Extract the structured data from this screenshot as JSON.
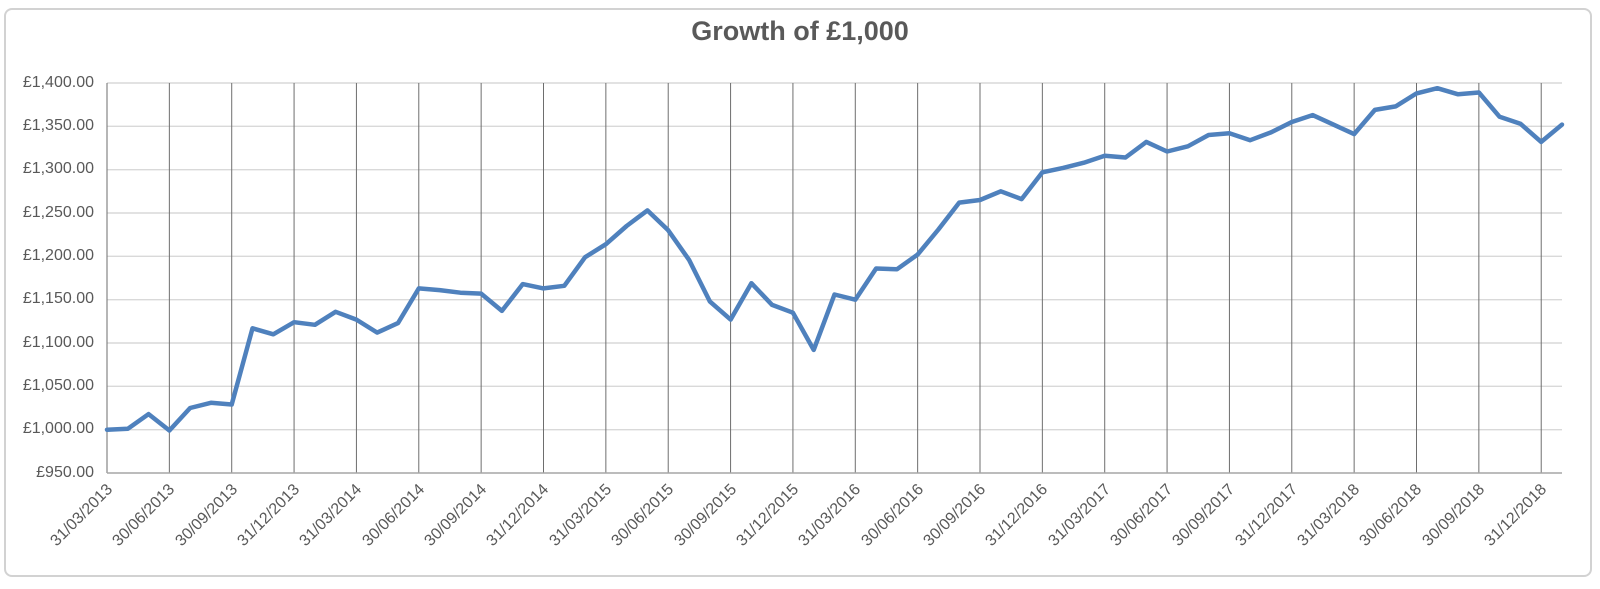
{
  "chart_data": {
    "type": "line",
    "title": "Growth of £1,000",
    "legend": "none",
    "grid": {
      "horizontal": true,
      "vertical": true
    },
    "ylim": [
      950,
      1400
    ],
    "y_ticks": [
      {
        "value": 950,
        "label": "£950.00"
      },
      {
        "value": 1000,
        "label": "£1,000.00"
      },
      {
        "value": 1050,
        "label": "£1,050.00"
      },
      {
        "value": 1100,
        "label": "£1,100.00"
      },
      {
        "value": 1150,
        "label": "£1,150.00"
      },
      {
        "value": 1200,
        "label": "£1,200.00"
      },
      {
        "value": 1250,
        "label": "£1,250.00"
      },
      {
        "value": 1300,
        "label": "£1,300.00"
      },
      {
        "value": 1350,
        "label": "£1,350.00"
      },
      {
        "value": 1400,
        "label": "£1,400.00"
      }
    ],
    "x_tick_labels": [
      "31/03/2013",
      "30/06/2013",
      "30/09/2013",
      "31/12/2013",
      "31/03/2014",
      "30/06/2014",
      "30/09/2014",
      "31/12/2014",
      "31/03/2015",
      "30/06/2015",
      "30/09/2015",
      "31/12/2015",
      "31/03/2016",
      "30/06/2016",
      "30/09/2016",
      "31/12/2016",
      "31/03/2017",
      "30/06/2017",
      "30/09/2017",
      "31/12/2017",
      "31/03/2018",
      "30/06/2018",
      "30/09/2018",
      "31/12/2018"
    ],
    "months_per_x_tick": 3,
    "series": [
      {
        "name": "Growth of £1,000",
        "frequency": "monthly",
        "first_point_label": "31/03/2013",
        "color": "#4f81bd",
        "values": [
          1000,
          1001,
          1018,
          999,
          1025,
          1031,
          1029,
          1117,
          1110,
          1124,
          1121,
          1136,
          1127,
          1112,
          1123,
          1163,
          1161,
          1158,
          1157,
          1137,
          1168,
          1163,
          1166,
          1199,
          1214,
          1235,
          1253,
          1230,
          1196,
          1148,
          1127,
          1169,
          1144,
          1135,
          1092,
          1156,
          1150,
          1186,
          1185,
          1202,
          1231,
          1262,
          1265,
          1275,
          1266,
          1297,
          1302,
          1308,
          1316,
          1314,
          1332,
          1321,
          1327,
          1340,
          1342,
          1334,
          1343,
          1355,
          1363,
          1352,
          1341,
          1369,
          1373,
          1388,
          1394,
          1387,
          1389,
          1361,
          1353,
          1332,
          1352
        ]
      }
    ]
  },
  "style": {
    "line_color": "#4f81bd",
    "h_grid_color": "#d9d9d9",
    "v_grid_color": "#6e6e6e",
    "axis_color": "#a6a6a6",
    "text_color": "#595959",
    "border_color": "#d2d2d2",
    "background": "#ffffff"
  }
}
